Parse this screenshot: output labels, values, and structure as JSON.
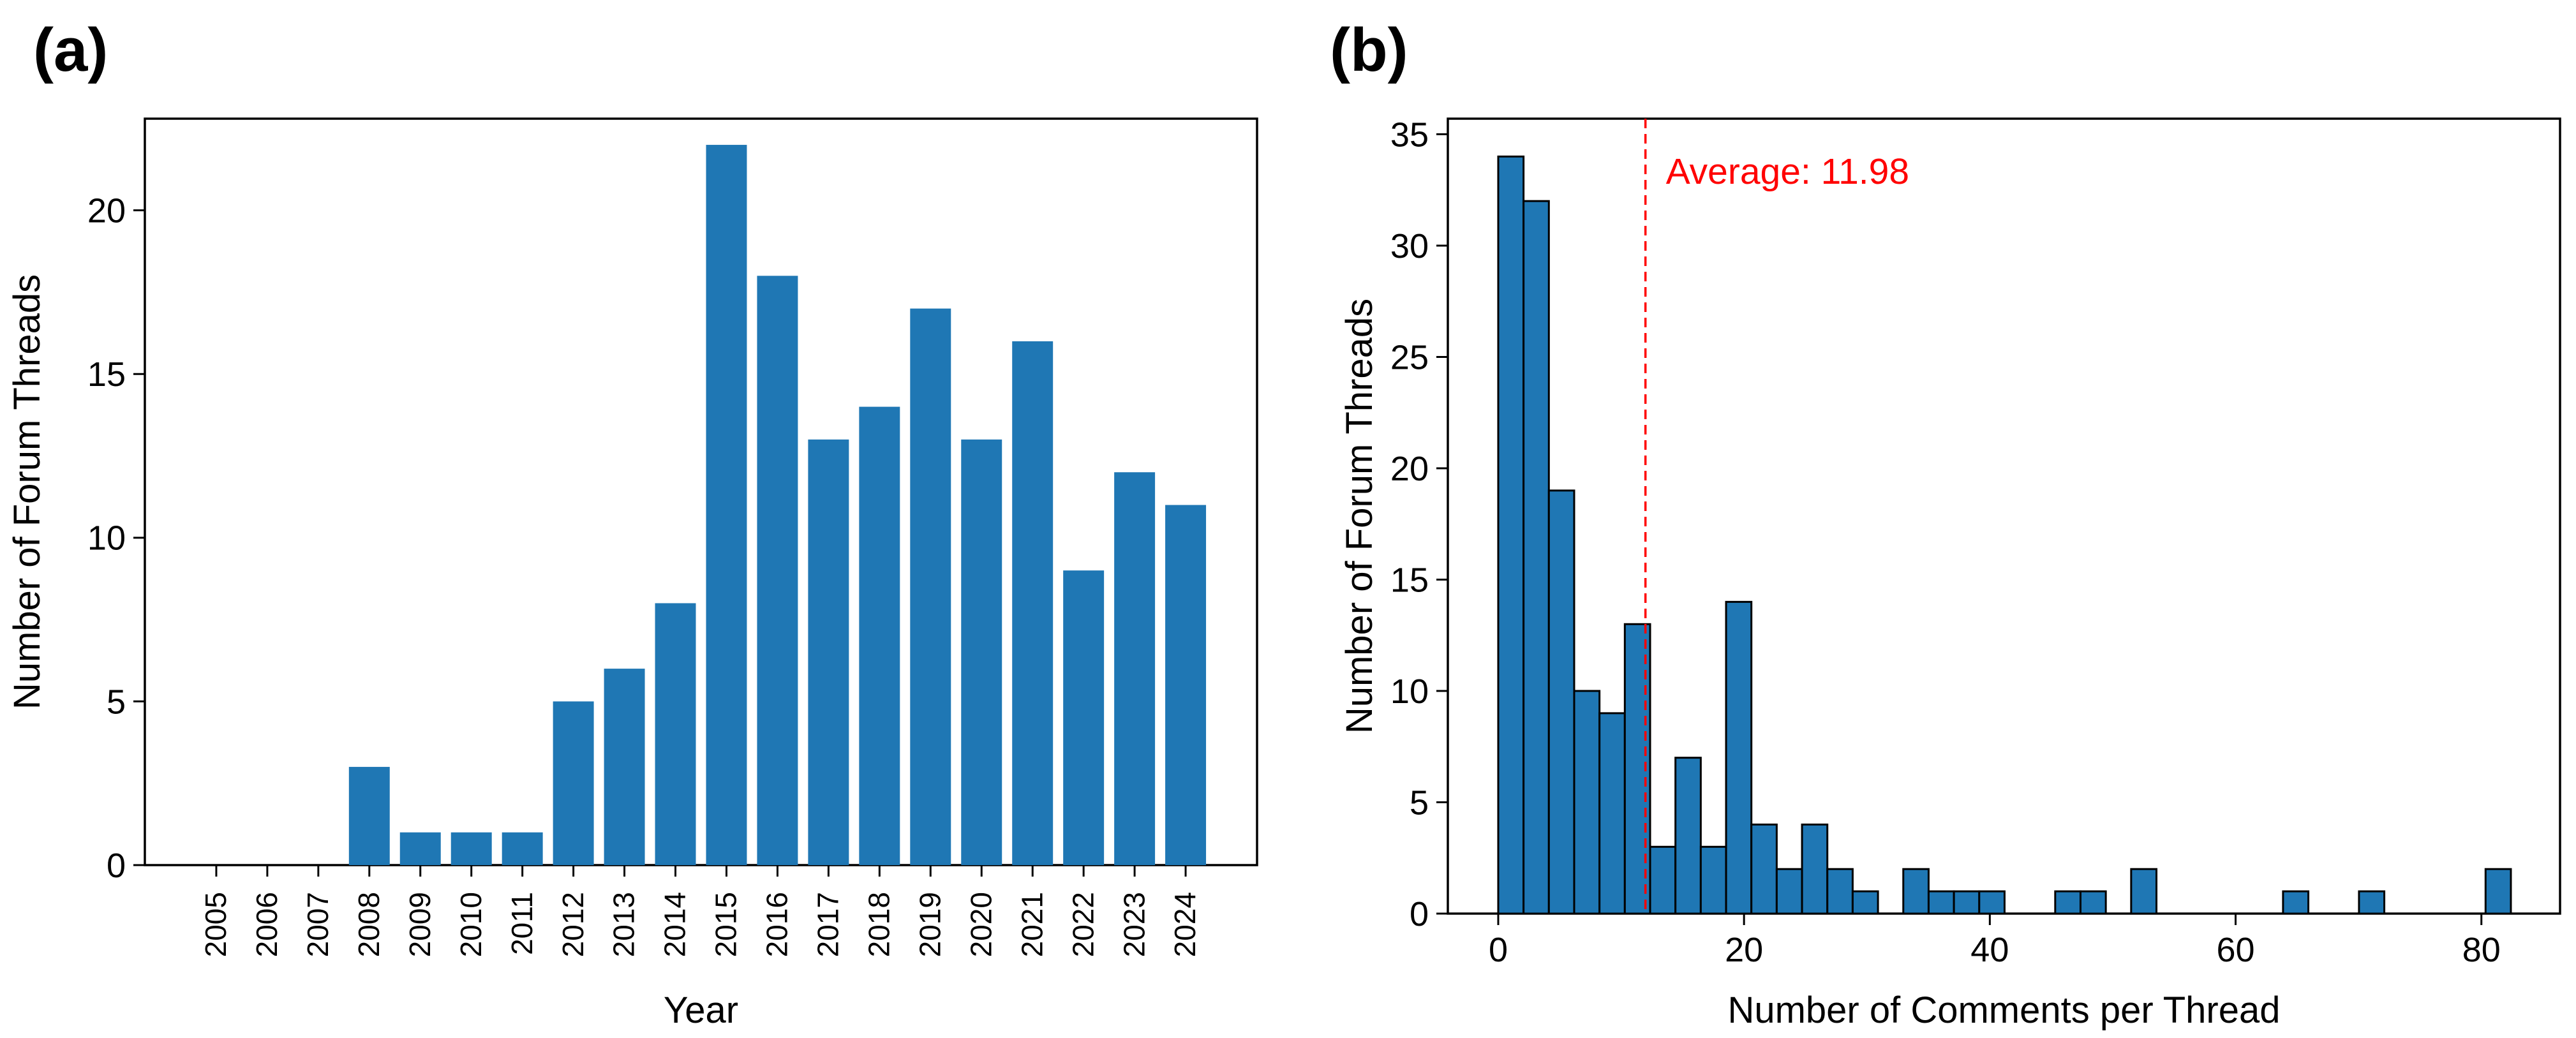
{
  "figure": {
    "panel_a_letter": "(a)",
    "panel_b_letter": "(b)"
  },
  "colors": {
    "bar_fill": "#1f77b4",
    "bar_edge": "#000000",
    "axis": "#000000",
    "average_line": "#ff0000",
    "annotation_text": "#ff0000",
    "background": "#ffffff"
  },
  "chart_data": [
    {
      "id": "panel_a",
      "type": "bar",
      "title": "",
      "xlabel": "Year",
      "ylabel": "Number of Forum Threads",
      "categories": [
        "2005",
        "2006",
        "2007",
        "2008",
        "2009",
        "2010",
        "2011",
        "2012",
        "2013",
        "2014",
        "2015",
        "2016",
        "2017",
        "2018",
        "2019",
        "2020",
        "2021",
        "2022",
        "2023",
        "2024"
      ],
      "values": [
        0,
        0,
        0,
        3,
        1,
        1,
        1,
        5,
        6,
        8,
        22,
        18,
        13,
        14,
        17,
        13,
        16,
        9,
        12,
        11
      ],
      "yticks": [
        0,
        5,
        10,
        15,
        20
      ],
      "ylim": [
        0,
        22.8
      ],
      "grid": false,
      "tick_label_rotation": 90,
      "bar_edge": false
    },
    {
      "id": "panel_b",
      "type": "bar",
      "title": "",
      "xlabel": "Number of Comments per Thread",
      "ylabel": "Number of Forum Threads",
      "bin_start": 0,
      "bin_width": 2.06,
      "counts": [
        34,
        32,
        19,
        10,
        9,
        13,
        3,
        7,
        3,
        14,
        4,
        2,
        4,
        2,
        1,
        0,
        2,
        1,
        1,
        1,
        0,
        0,
        1,
        1,
        0,
        2,
        0,
        0,
        0,
        0,
        0,
        1,
        0,
        0,
        1,
        0,
        0,
        0,
        0,
        2
      ],
      "xticks": [
        0,
        20,
        40,
        60,
        80
      ],
      "yticks": [
        0,
        5,
        10,
        15,
        20,
        25,
        30,
        35
      ],
      "xlim": [
        -4.1,
        86.4
      ],
      "ylim": [
        0,
        35.7
      ],
      "grid": false,
      "bar_edge": true,
      "average_line": {
        "x": 11.98,
        "label": "Average: 11.98",
        "style": "dashed"
      }
    }
  ]
}
